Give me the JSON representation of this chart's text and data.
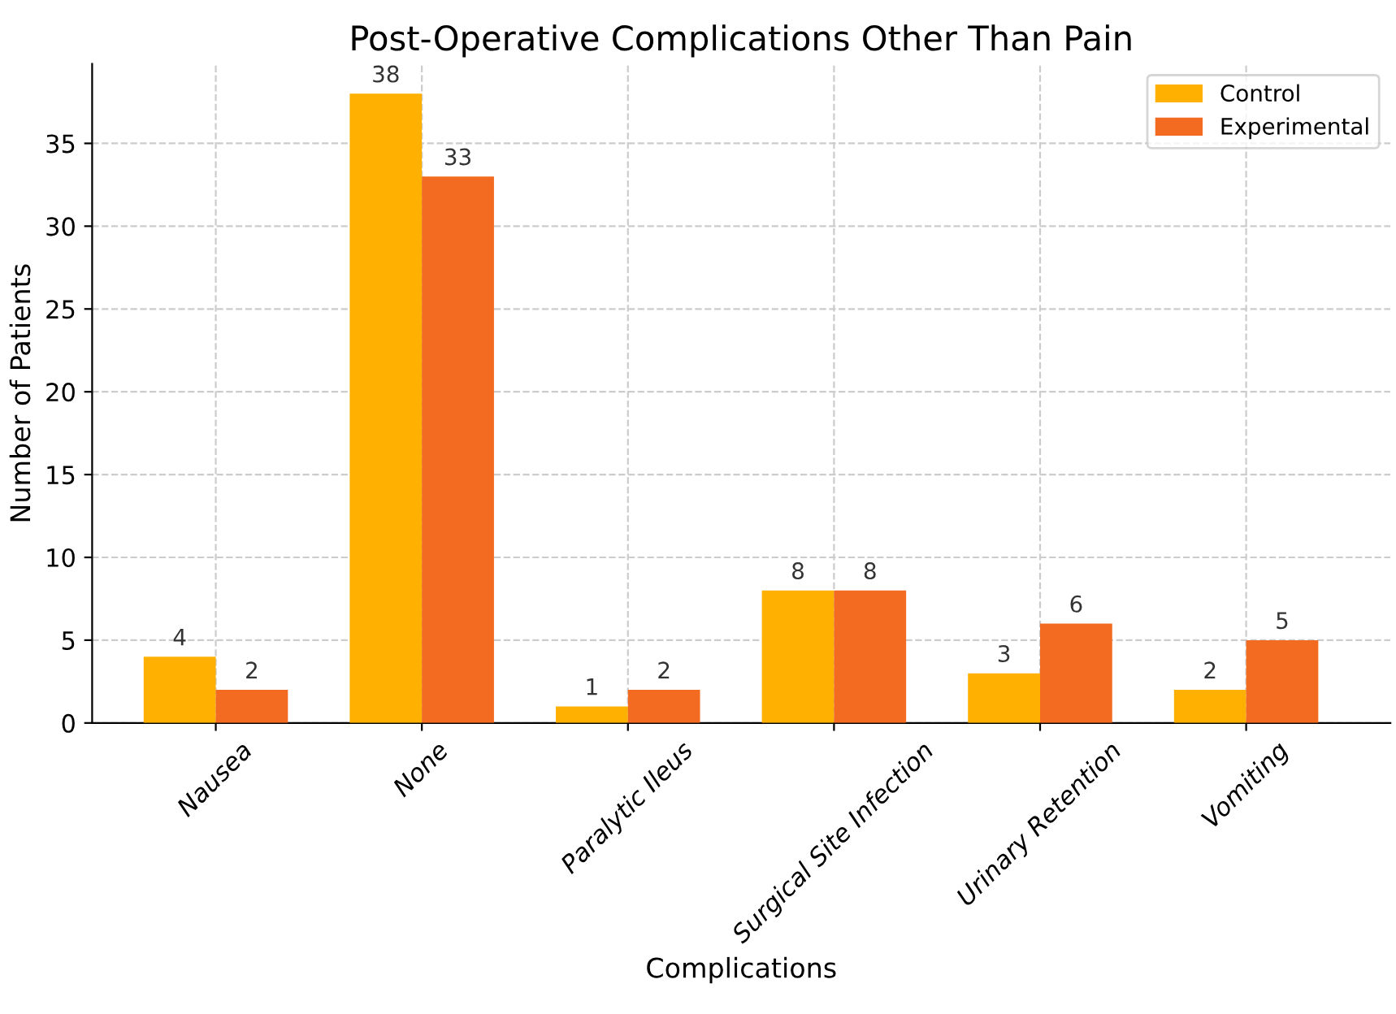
{
  "chart_data": {
    "type": "bar",
    "title": "Post-Operative Complications Other Than Pain",
    "xlabel": "Complications",
    "ylabel": "Number of Patients",
    "categories": [
      "Nausea",
      "None",
      "Paralytic Ileus",
      "Surgical Site Infection",
      "Urinary Retention",
      "Vomiting"
    ],
    "series": [
      {
        "name": "Control",
        "color": "#ffb000",
        "values": [
          4,
          38,
          1,
          8,
          3,
          2
        ]
      },
      {
        "name": "Experimental",
        "color": "#f26b21",
        "values": [
          2,
          33,
          2,
          8,
          6,
          5
        ]
      }
    ],
    "ylim": [
      0,
      39.8
    ],
    "yticks": [
      0,
      5,
      10,
      15,
      20,
      25,
      30,
      35
    ],
    "grid": true,
    "legend": "top right",
    "data_labels": true
  }
}
